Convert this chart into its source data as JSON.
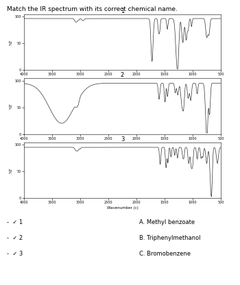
{
  "title": "Match the IR spectrum with its correct chemical name.",
  "spectrum_labels": [
    "1",
    "2",
    "3"
  ],
  "answer_labels": [
    "-  ✓ 1",
    "-  ✓ 2",
    "-  ✓ 3"
  ],
  "answer_choices": [
    "A. Methyl benzoate",
    "B. Triphenylmethanol",
    "C. Bromobenzene"
  ],
  "bg_color": "#ffffff",
  "spectrum_color": "#333333",
  "title_fontsize": 6.5,
  "label_fontsize": 6.0,
  "tick_fontsize": 3.5,
  "axis_label_fontsize": 4.0,
  "ylabel": "%T",
  "xlabel": "Wavenumber (c)",
  "xmin": 4000,
  "xmax": 500,
  "yticks": [
    0,
    50,
    100
  ],
  "xticks": [
    4000,
    3500,
    3000,
    2500,
    2000,
    1500,
    1000,
    500
  ]
}
